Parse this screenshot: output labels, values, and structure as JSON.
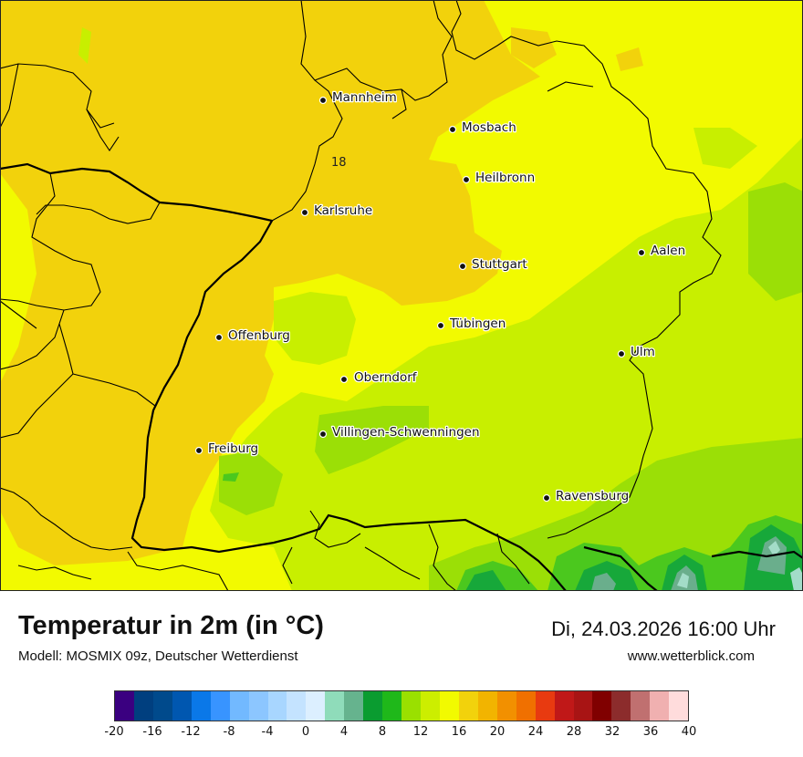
{
  "map": {
    "cities": [
      {
        "name": "Mannheim"
      },
      {
        "name": "Mosbach"
      },
      {
        "name": "Heilbronn"
      },
      {
        "name": "Karlsruhe"
      },
      {
        "name": "Aalen"
      },
      {
        "name": "Stuttgart"
      },
      {
        "name": "Tübingen"
      },
      {
        "name": "Offenburg"
      },
      {
        "name": "Ulm"
      },
      {
        "name": "Oberndorf"
      },
      {
        "name": "Villingen-Schwenningen"
      },
      {
        "name": "Freiburg"
      },
      {
        "name": "Ravensburg"
      }
    ],
    "isoline_label": "18",
    "field_colors": {
      "deep_orange_yellow": "#f2d20c",
      "yellow": "#f2fa00",
      "light_green": "#c8ef00",
      "green": "#9bdf06",
      "mid_green": "#4bc81e",
      "dark_green": "#17a83a",
      "teal": "#6aae8c",
      "pale_teal": "#a3dcc8"
    }
  },
  "footer": {
    "title": "Temperatur in 2m (in °C)",
    "model": "Modell: MOSMIX 09z, Deutscher Wetterdienst",
    "datetime": "Di, 24.03.2026 16:00 Uhr",
    "website": "www.wetterblick.com"
  },
  "legend": {
    "colors": [
      "#3a0080",
      "#003f7f",
      "#004a8c",
      "#0057b0",
      "#0a78e8",
      "#3894ff",
      "#72b9ff",
      "#8cc6ff",
      "#a8d6ff",
      "#c4e3ff",
      "#dcefff",
      "#8fdcba",
      "#66b38e",
      "#0a9c30",
      "#1fb81a",
      "#9ae000",
      "#ccee00",
      "#f2fa00",
      "#f2d20c",
      "#f2b400",
      "#f29000",
      "#f07000",
      "#e83a10",
      "#c01818",
      "#a81414",
      "#800000",
      "#8c2c2c",
      "#c07070",
      "#f0b0b0",
      "#ffdcdc"
    ],
    "tick_labels": [
      "-20",
      "-16",
      "-12",
      "-8",
      "-4",
      "0",
      "4",
      "8",
      "12",
      "16",
      "20",
      "24",
      "28",
      "32",
      "36",
      "40"
    ]
  }
}
